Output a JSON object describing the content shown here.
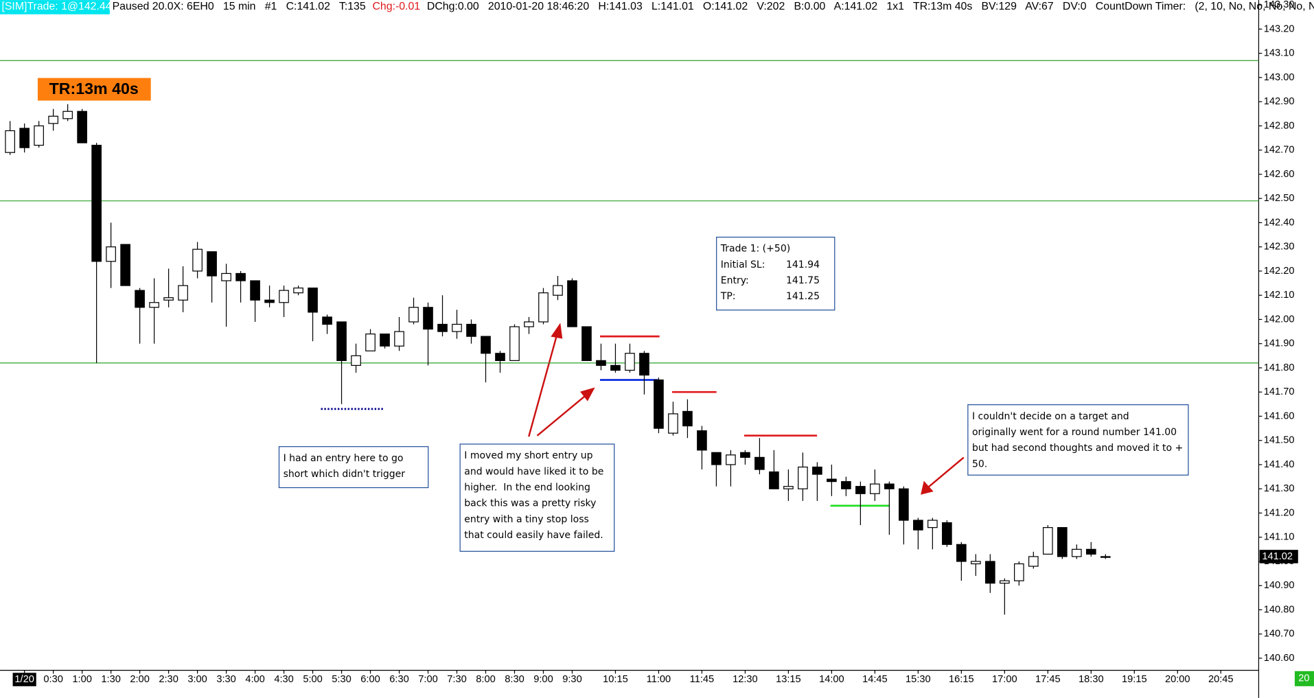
{
  "header": {
    "sim_trade": "[SIM]Trade: 1@142.44",
    "status": "Paused 20.0X: 6EH0   15 min   #1   C:141.02   T:135",
    "change": "Chg:-0.01",
    "details": "DChg:0.00   2010-01-20 18:46:20   H:141.03   L:141.01   O:141.02   V:202   B:0.00   A:141.02   1x1   TR:13m 40s   BV:129   AV:67   DV:0   CountDown Timer:   (2, 10, No, No, No, No, N"
  },
  "timer_label": "TR:13m 40s",
  "corner_label": "20",
  "trade_box": {
    "title": "Trade 1: (+50)",
    "rows": [
      [
        "Initial SL:",
        "141.94"
      ],
      [
        "Entry:",
        "141.75"
      ],
      [
        "TP:",
        "141.25"
      ]
    ]
  },
  "notes": [
    {
      "lines": [
        "I had an entry here to go",
        "short which didn't trigger"
      ]
    },
    {
      "lines": [
        "I moved my short entry up",
        "and would have liked it to be",
        "higher.  In the end looking",
        "back this was a pretty risky",
        "entry with a tiny stop loss",
        "that could easily have failed."
      ]
    },
    {
      "lines": [
        "I couldn't decide on a target and",
        "originally went for a round number 141.00",
        "but had second thoughts and moved it to +",
        "50."
      ]
    }
  ],
  "chart_data": {
    "type": "candlestick",
    "x": [
      null,
      "1/20",
      null,
      "0:30",
      null,
      "1:00",
      null,
      "1:30",
      null,
      "2:00",
      null,
      "2:30",
      null,
      "3:00",
      null,
      "3:30",
      null,
      "4:00",
      null,
      "4:30",
      null,
      "5:00",
      null,
      "5:30",
      null,
      "6:00",
      null,
      "6:30",
      null,
      "7:00",
      null,
      "7:30",
      null,
      "8:00",
      null,
      "8:30",
      null,
      "9:00",
      null,
      "9:30",
      null,
      null,
      "10:15",
      null,
      null,
      "11:00",
      null,
      null,
      "11:45",
      null,
      null,
      "12:30",
      null,
      null,
      "13:15",
      null,
      null,
      "14:00",
      null,
      null,
      "14:45",
      null,
      null,
      "15:30",
      null,
      null,
      "16:15",
      null,
      null,
      "17:00",
      null,
      null,
      "17:45",
      null,
      null,
      "18:30",
      null,
      null,
      "19:15",
      null,
      null,
      "20:00",
      null,
      null,
      "20:45",
      null,
      null
    ],
    "open": [
      142.69,
      142.79,
      142.72,
      142.81,
      142.83,
      142.86,
      142.72,
      142.24,
      142.31,
      142.12,
      142.05,
      142.08,
      142.08,
      142.2,
      142.28,
      142.16,
      142.19,
      142.16,
      142.08,
      142.07,
      142.11,
      142.13,
      142.01,
      141.99,
      141.81,
      141.87,
      141.94,
      141.89,
      141.99,
      142.05,
      141.98,
      141.95,
      141.98,
      141.93,
      141.86,
      141.83,
      141.97,
      141.99,
      142.1,
      142.16,
      141.97,
      141.83,
      141.81,
      141.79,
      141.86,
      141.75,
      141.53,
      141.62,
      141.54,
      141.45,
      141.4,
      141.45,
      141.43,
      141.37,
      141.3,
      141.3,
      141.39,
      141.34,
      141.33,
      141.31,
      141.28,
      141.32,
      141.3,
      141.17,
      141.14,
      141.16,
      141.07,
      140.99,
      141.0,
      140.91,
      140.92,
      140.98,
      141.03,
      141.14,
      141.02,
      141.05,
      141.02,
      null,
      null,
      null,
      null,
      null,
      null,
      null,
      null,
      null,
      null
    ],
    "high": [
      142.82,
      142.81,
      142.82,
      142.87,
      142.89,
      142.87,
      142.73,
      142.4,
      142.31,
      142.13,
      142.17,
      142.21,
      142.22,
      142.32,
      142.28,
      142.23,
      142.2,
      142.16,
      142.14,
      142.14,
      142.14,
      142.13,
      142.02,
      141.99,
      141.9,
      141.96,
      141.94,
      142.01,
      142.09,
      142.07,
      142.1,
      142.04,
      142.0,
      141.93,
      141.87,
      141.98,
      142.01,
      142.13,
      142.18,
      142.17,
      141.97,
      141.9,
      141.9,
      141.9,
      141.87,
      141.76,
      141.66,
      141.67,
      141.56,
      141.45,
      141.46,
      141.46,
      141.51,
      141.46,
      141.38,
      141.45,
      141.41,
      141.4,
      141.35,
      141.33,
      141.38,
      141.33,
      141.31,
      141.18,
      141.18,
      141.17,
      141.08,
      141.03,
      141.03,
      140.93,
      141.0,
      141.04,
      141.15,
      141.14,
      141.07,
      141.08,
      141.03,
      null,
      null,
      null,
      null,
      null,
      null,
      null,
      null,
      null,
      null
    ],
    "low": [
      142.68,
      142.69,
      142.71,
      142.78,
      142.82,
      142.73,
      141.82,
      142.13,
      142.14,
      141.9,
      141.9,
      142.05,
      142.03,
      142.17,
      142.07,
      141.97,
      142.07,
      141.99,
      142.05,
      142.01,
      142.1,
      141.91,
      141.94,
      141.65,
      141.78,
      141.87,
      141.88,
      141.87,
      141.98,
      141.81,
      141.93,
      141.92,
      141.9,
      141.74,
      141.78,
      141.83,
      141.94,
      141.98,
      142.08,
      141.97,
      141.83,
      141.79,
      141.78,
      141.78,
      141.69,
      141.53,
      141.52,
      141.51,
      141.38,
      141.31,
      141.31,
      141.4,
      141.36,
      141.3,
      141.25,
      141.25,
      141.25,
      141.27,
      141.27,
      141.15,
      141.25,
      141.11,
      141.07,
      141.05,
      141.05,
      141.06,
      140.92,
      140.94,
      140.87,
      140.78,
      140.9,
      140.97,
      141.03,
      141.01,
      141.01,
      141.02,
      141.01,
      null,
      null,
      null,
      null,
      null,
      null,
      null,
      null,
      null,
      null
    ],
    "close": [
      142.78,
      142.71,
      142.8,
      142.84,
      142.86,
      142.73,
      142.24,
      142.3,
      142.14,
      142.05,
      142.07,
      142.09,
      142.14,
      142.29,
      142.18,
      142.19,
      142.16,
      142.08,
      142.07,
      142.12,
      142.13,
      142.03,
      141.98,
      141.83,
      141.85,
      141.94,
      141.89,
      141.95,
      142.05,
      141.96,
      141.95,
      141.98,
      141.93,
      141.86,
      141.83,
      141.97,
      141.99,
      142.11,
      142.14,
      141.97,
      141.83,
      141.81,
      141.79,
      141.86,
      141.77,
      141.55,
      141.61,
      141.56,
      141.46,
      141.4,
      141.44,
      141.43,
      141.38,
      141.3,
      141.31,
      141.39,
      141.36,
      141.33,
      141.3,
      141.28,
      141.32,
      141.3,
      141.17,
      141.13,
      141.17,
      141.07,
      141.0,
      141.0,
      140.91,
      140.92,
      140.99,
      141.02,
      141.14,
      141.02,
      141.05,
      141.03,
      141.02,
      null,
      null,
      null,
      null,
      null,
      null,
      null,
      null,
      null,
      null
    ],
    "up_color": "#ffffff",
    "down_color": "#000000",
    "ylim": [
      140.55,
      143.32
    ],
    "yticks": [
      {
        "value": 140.6,
        "label": "140.60"
      },
      {
        "value": 140.7,
        "label": "140.70"
      },
      {
        "value": 140.8,
        "label": "140.80"
      },
      {
        "value": 140.9,
        "label": "140.90"
      },
      {
        "value": 141.0,
        "label": "141.00"
      },
      {
        "value": 141.1,
        "label": "141.10"
      },
      {
        "value": 141.2,
        "label": "141.20"
      },
      {
        "value": 141.3,
        "label": "141.30"
      },
      {
        "value": 141.4,
        "label": "141.40"
      },
      {
        "value": 141.5,
        "label": "141.50"
      },
      {
        "value": 141.6,
        "label": "141.60"
      },
      {
        "value": 141.7,
        "label": "141.70"
      },
      {
        "value": 141.8,
        "label": "141.80"
      },
      {
        "value": 141.9,
        "label": "141.90"
      },
      {
        "value": 142.0,
        "label": "142.00"
      },
      {
        "value": 142.1,
        "label": "142.10"
      },
      {
        "value": 142.2,
        "label": "142.20"
      },
      {
        "value": 142.3,
        "label": "142.30"
      },
      {
        "value": 142.4,
        "label": "142.40"
      },
      {
        "value": 142.5,
        "label": "142.50"
      },
      {
        "value": 142.6,
        "label": "142.60"
      },
      {
        "value": 142.7,
        "label": "142.70"
      },
      {
        "value": 142.8,
        "label": "142.80"
      },
      {
        "value": 142.9,
        "label": "142.90"
      },
      {
        "value": 143.0,
        "label": "143.00"
      },
      {
        "value": 143.1,
        "label": "143.10"
      },
      {
        "value": 143.2,
        "label": "143.20"
      },
      {
        "value": 143.3,
        "label": "143.30"
      }
    ],
    "levels": [
      {
        "value": 143.07,
        "color": "#2ca02c"
      },
      {
        "value": 142.49,
        "color": "#2ca02c"
      },
      {
        "value": 141.82,
        "color": "#2ca02c"
      }
    ],
    "trade_lines": [
      {
        "value": 141.63,
        "color": "#00008b"
      },
      {
        "value": 141.93,
        "color": "#e0191c"
      },
      {
        "value": 141.75,
        "color": "#0022dd"
      },
      {
        "value": 141.7,
        "color": "#e0191c"
      },
      {
        "value": 141.52,
        "color": "#e0191c"
      },
      {
        "value": 141.23,
        "color": "#22dd22"
      }
    ],
    "last_price": 141.02
  }
}
